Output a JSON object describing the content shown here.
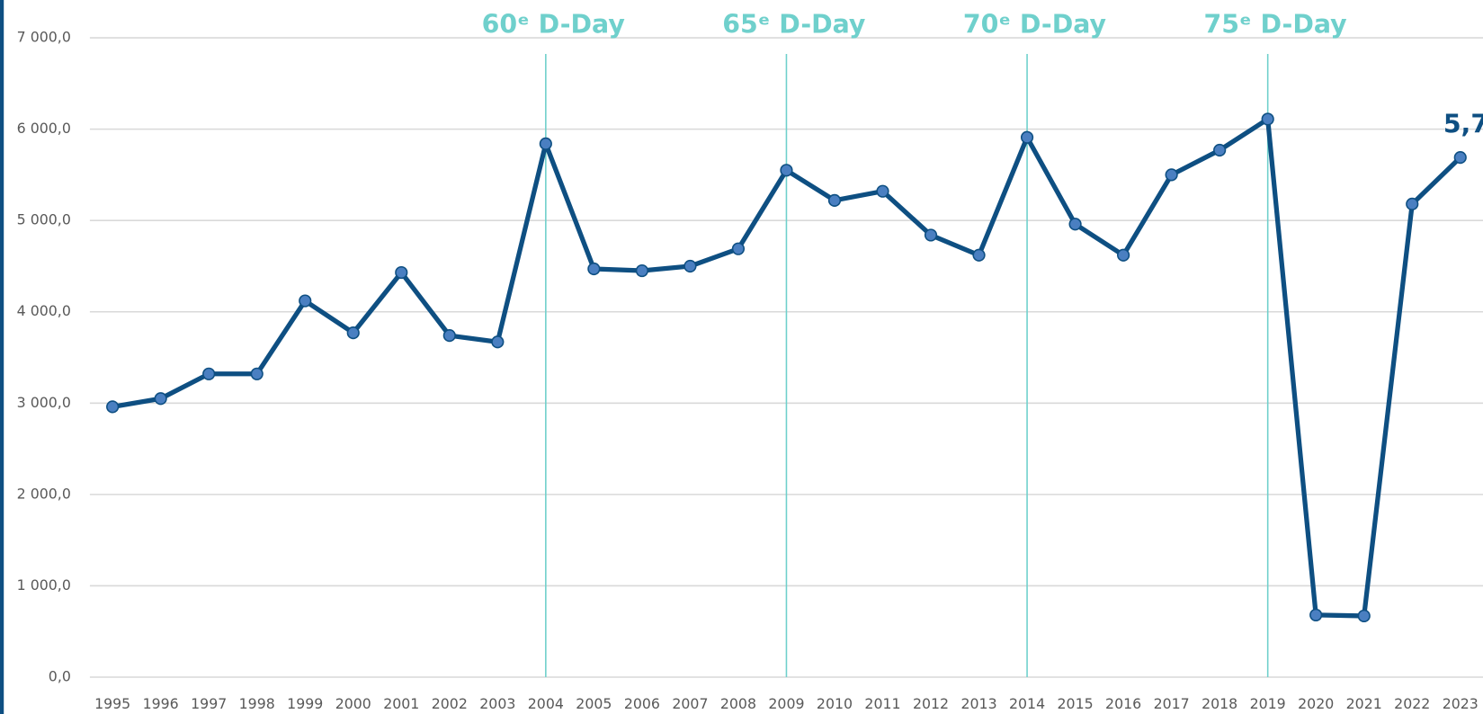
{
  "chart_data": {
    "type": "line",
    "x": [
      1995,
      1996,
      1997,
      1998,
      1999,
      2000,
      2001,
      2002,
      2003,
      2004,
      2005,
      2006,
      2007,
      2008,
      2009,
      2010,
      2011,
      2012,
      2013,
      2014,
      2015,
      2016,
      2017,
      2018,
      2019,
      2020,
      2021,
      2022,
      2023
    ],
    "series": [
      {
        "color": "#0e4f82",
        "marker_color": "#4a7fc1",
        "values": [
          2960,
          3050,
          3320,
          3320,
          4120,
          3770,
          4430,
          3740,
          3670,
          5840,
          4470,
          4450,
          4500,
          4690,
          5550,
          5220,
          5320,
          4840,
          4620,
          5910,
          4960,
          4620,
          5500,
          5770,
          6110,
          680,
          670,
          5180,
          5690
        ],
        "value_labels": [
          null,
          null,
          null,
          null,
          null,
          null,
          null,
          null,
          null,
          null,
          null,
          null,
          null,
          null,
          null,
          null,
          null,
          null,
          null,
          null,
          null,
          null,
          null,
          null,
          null,
          null,
          null,
          null,
          "5,7"
        ]
      }
    ],
    "ylim": [
      0,
      7000
    ],
    "yticks": [
      {
        "value": 0,
        "label": "0,0"
      },
      {
        "value": 1000,
        "label": "1 000,0"
      },
      {
        "value": 2000,
        "label": "2 000,0"
      },
      {
        "value": 3000,
        "label": "3 000,0"
      },
      {
        "value": 4000,
        "label": "4 000,0"
      },
      {
        "value": 5000,
        "label": "5 000,0"
      },
      {
        "value": 6000,
        "label": "6 000,0"
      },
      {
        "value": 7000,
        "label": "7 000,0"
      }
    ],
    "grid": true,
    "annotations": [
      {
        "x": 2004,
        "label": "60ᵉ D-Day"
      },
      {
        "x": 2009,
        "label": "65ᵉ D-Day"
      },
      {
        "x": 2014,
        "label": "70ᵉ D-Day"
      },
      {
        "x": 2019,
        "label": "75ᵉ D-Day"
      }
    ],
    "annotation_color": "#6fd0cc"
  }
}
